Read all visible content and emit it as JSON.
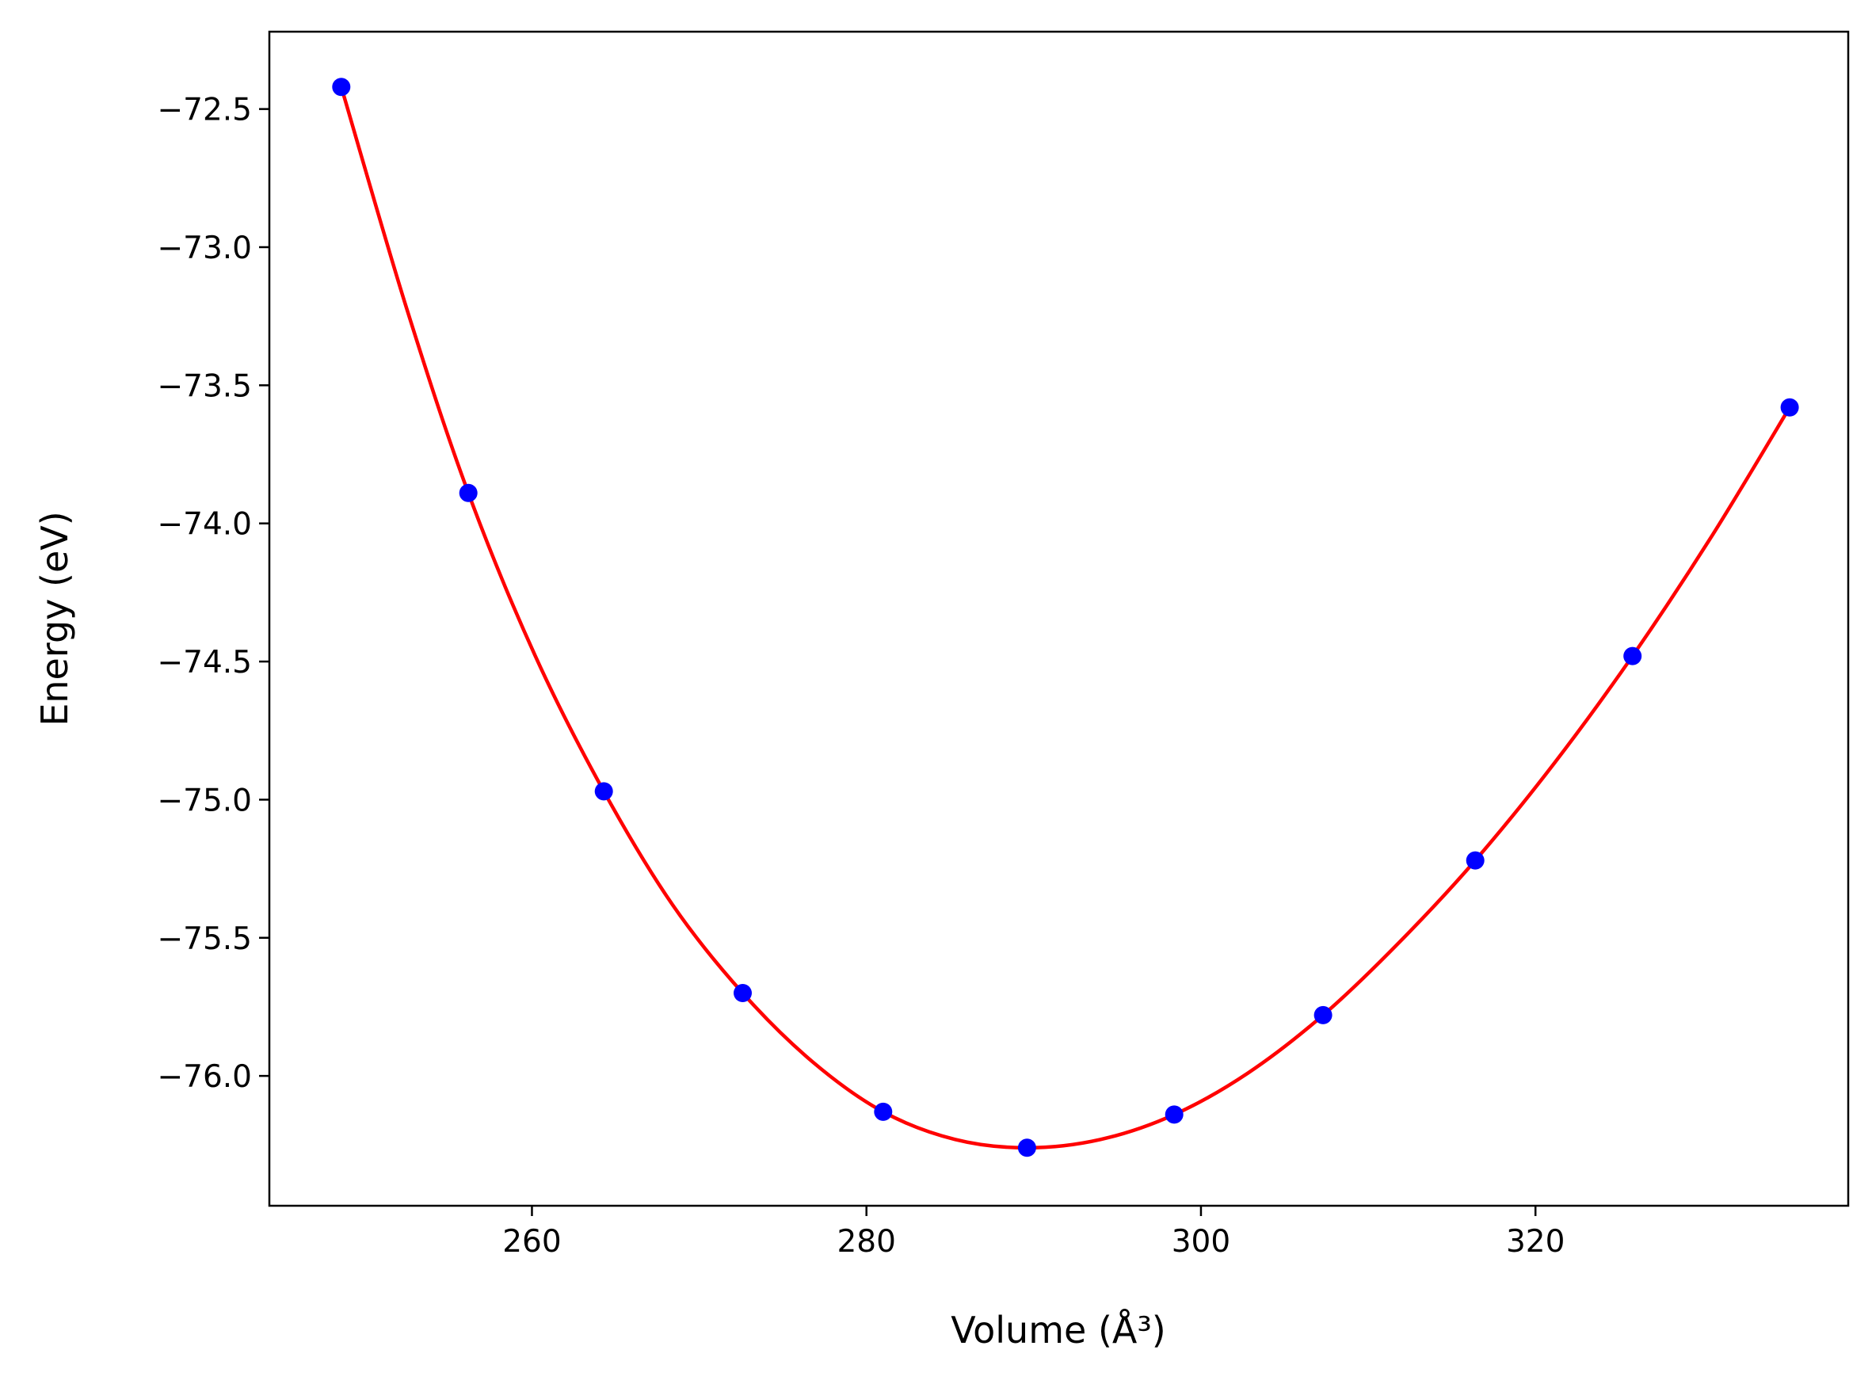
{
  "chart_data": {
    "type": "scatter",
    "title": "",
    "xlabel": "Volume (Å³)",
    "ylabel": "Energy (eV)",
    "xlim": [
      244.3,
      338.7
    ],
    "ylim": [
      -76.47,
      -72.22
    ],
    "xticks": [
      260,
      280,
      300,
      320
    ],
    "xtick_labels": [
      "260",
      "280",
      "300",
      "320"
    ],
    "yticks": [
      -72.5,
      -73.0,
      -73.5,
      -74.0,
      -74.5,
      -75.0,
      -75.5,
      -76.0
    ],
    "ytick_labels": [
      "−72.5",
      "−73.0",
      "−73.5",
      "−74.0",
      "−74.5",
      "−75.0",
      "−75.5",
      "−76.0"
    ],
    "grid": false,
    "series": [
      {
        "kind": "points",
        "color": "#0000ff",
        "x": [
          248.6,
          256.2,
          264.3,
          272.6,
          281.0,
          289.6,
          298.4,
          307.3,
          316.4,
          325.8,
          335.2
        ],
        "y": [
          -72.42,
          -73.89,
          -74.97,
          -75.7,
          -76.13,
          -76.26,
          -76.14,
          -75.78,
          -75.22,
          -74.48,
          -73.58
        ]
      },
      {
        "kind": "fit-curve",
        "color": "#ff0000",
        "x": [
          248.6,
          252.5,
          256.2,
          260.2,
          264.3,
          268.4,
          272.6,
          276.8,
          281.0,
          285.3,
          289.6,
          294.0,
          298.4,
          302.8,
          307.3,
          311.8,
          316.4,
          321.1,
          325.8,
          330.5,
          335.2
        ],
        "y": [
          -72.42,
          -73.22,
          -73.89,
          -74.48,
          -74.97,
          -75.38,
          -75.7,
          -75.95,
          -76.13,
          -76.23,
          -76.26,
          -76.23,
          -76.14,
          -75.99,
          -75.78,
          -75.52,
          -75.22,
          -74.87,
          -74.48,
          -74.05,
          -73.58
        ]
      }
    ]
  }
}
